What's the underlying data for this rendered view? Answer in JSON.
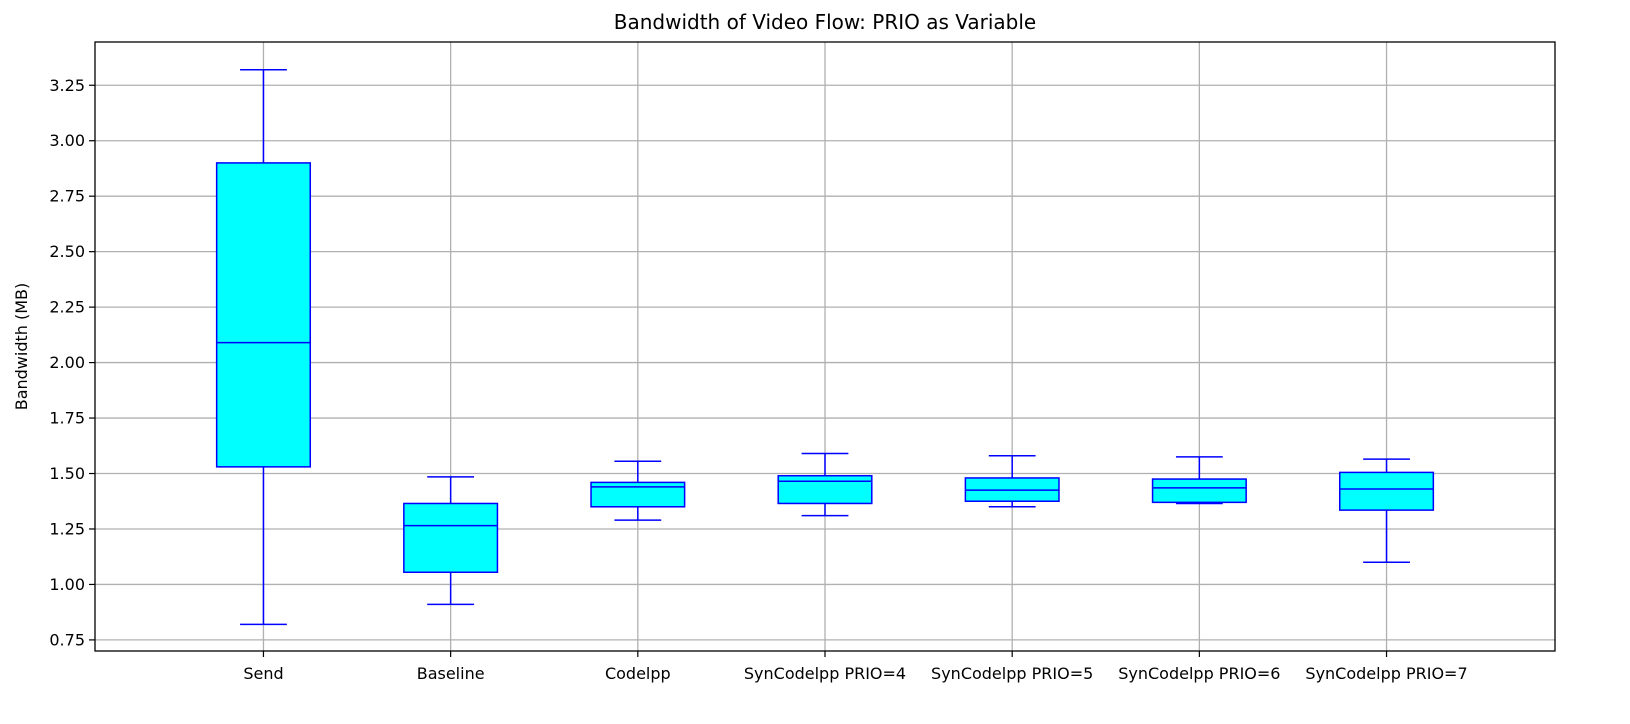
{
  "chart_data": {
    "type": "box",
    "title": "Bandwidth of Video Flow: PRIO as Variable",
    "xlabel": "",
    "ylabel": "Bandwidth (MB)",
    "ylim": [
      0.7,
      3.445
    ],
    "yticks": [
      0.75,
      1.0,
      1.25,
      1.5,
      1.75,
      2.0,
      2.25,
      2.5,
      2.75,
      3.0,
      3.25
    ],
    "ytick_labels": [
      "0.75",
      "1.00",
      "1.25",
      "1.50",
      "1.75",
      "2.00",
      "2.25",
      "2.50",
      "2.75",
      "3.00",
      "3.25"
    ],
    "grid": true,
    "colors": {
      "box_fill": "#00ffff",
      "box_edge": "#0000ff",
      "grid": "#b0b0b0"
    },
    "categories": [
      "Send",
      "Baseline",
      "Codelpp",
      "SynCodelpp PRIO=4",
      "SynCodelpp PRIO=5",
      "SynCodelpp PRIO=6",
      "SynCodelpp PRIO=7"
    ],
    "boxes": [
      {
        "whisker_low": 0.82,
        "q1": 1.53,
        "median": 2.09,
        "q3": 2.9,
        "whisker_high": 3.32
      },
      {
        "whisker_low": 0.91,
        "q1": 1.055,
        "median": 1.265,
        "q3": 1.365,
        "whisker_high": 1.485
      },
      {
        "whisker_low": 1.29,
        "q1": 1.35,
        "median": 1.44,
        "q3": 1.46,
        "whisker_high": 1.555
      },
      {
        "whisker_low": 1.31,
        "q1": 1.365,
        "median": 1.465,
        "q3": 1.49,
        "whisker_high": 1.59
      },
      {
        "whisker_low": 1.35,
        "q1": 1.375,
        "median": 1.425,
        "q3": 1.48,
        "whisker_high": 1.58
      },
      {
        "whisker_low": 1.365,
        "q1": 1.37,
        "median": 1.435,
        "q3": 1.475,
        "whisker_high": 1.575
      },
      {
        "whisker_low": 1.1,
        "q1": 1.335,
        "median": 1.43,
        "q3": 1.505,
        "whisker_high": 1.565
      }
    ]
  }
}
